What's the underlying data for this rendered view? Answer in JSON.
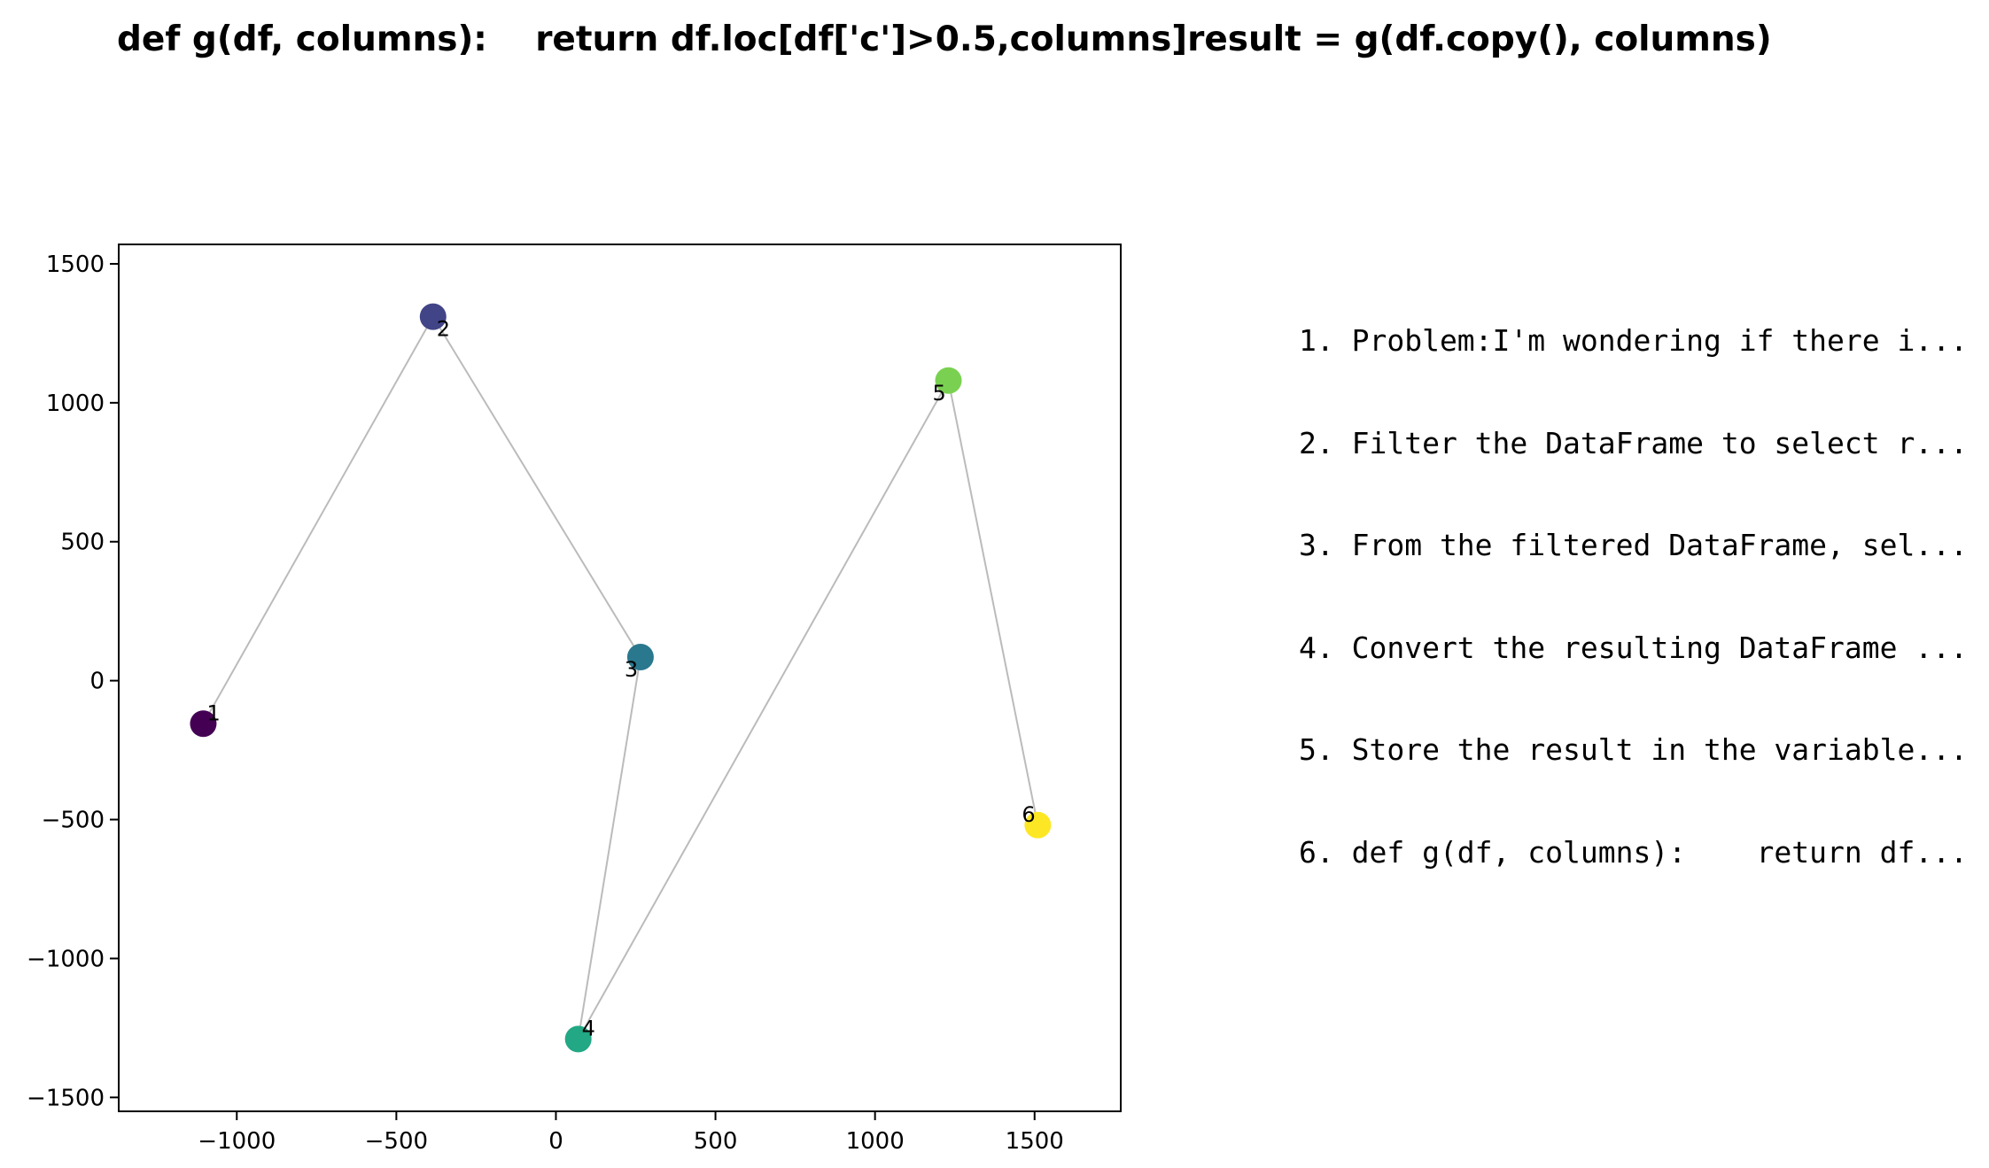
{
  "title": "def g(df, columns):    return df.loc[df['c']>0.5,columns]result = g(df.copy(), columns)",
  "steps": [
    "1. Problem:I'm wondering if there i...",
    "2. Filter the DataFrame to select r...",
    "3. From the filtered DataFrame, sel...",
    "4. Convert the resulting DataFrame ...",
    "5. Store the result in the variable...",
    "6. def g(df, columns):    return df..."
  ],
  "chart_data": {
    "type": "scatter",
    "title": "def g(df, columns):    return df.loc[df['c']>0.5,columns]result = g(df.copy(), columns)",
    "xlabel": "",
    "ylabel": "",
    "xlim": [
      -1370,
      1770
    ],
    "ylim": [
      -1550,
      1570
    ],
    "xticks": [
      -1000,
      -500,
      0,
      500,
      1000,
      1500
    ],
    "yticks": [
      -1500,
      -1000,
      -500,
      0,
      500,
      1000,
      1500
    ],
    "xtick_labels": [
      "−1000",
      "−500",
      "0",
      "500",
      "1000",
      "1500"
    ],
    "ytick_labels": [
      "−1500",
      "−1000",
      "−500",
      "0",
      "500",
      "1000",
      "1500"
    ],
    "grid": false,
    "connected_in_order": true,
    "line_color": "#bbbbbb",
    "points": [
      {
        "label": "1",
        "x": -1105,
        "y": -155,
        "color": "#440154"
      },
      {
        "label": "2",
        "x": -385,
        "y": 1310,
        "color": "#414487"
      },
      {
        "label": "3",
        "x": 265,
        "y": 85,
        "color": "#2a788e"
      },
      {
        "label": "4",
        "x": 70,
        "y": -1290,
        "color": "#22a884"
      },
      {
        "label": "5",
        "x": 1230,
        "y": 1080,
        "color": "#7ad151"
      },
      {
        "label": "6",
        "x": 1510,
        "y": -520,
        "color": "#fde725"
      }
    ]
  }
}
